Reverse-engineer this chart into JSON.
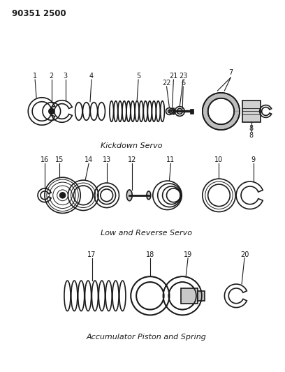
{
  "title_ref": "90351 2500",
  "background_color": "#ffffff",
  "line_color": "#1a1a1a",
  "section1_label": "Kickdown Servo",
  "section2_label": "Low and Reverse Servo",
  "section3_label": "Accumulator Piston and Spring",
  "fig_width": 4.08,
  "fig_height": 5.33,
  "dpi": 100
}
